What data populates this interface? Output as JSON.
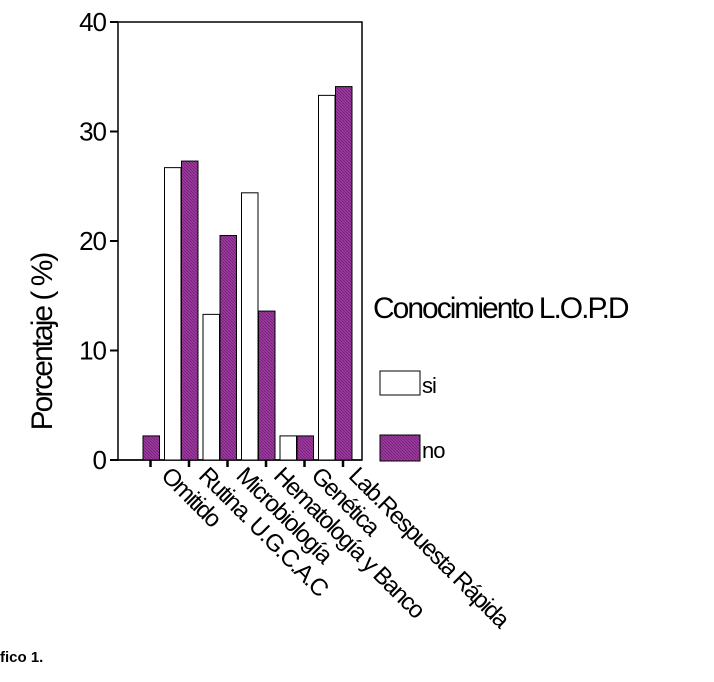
{
  "caption": "fico 1.",
  "chart_data": {
    "type": "bar",
    "title": "",
    "xlabel": "",
    "ylabel": "Porcentaje ( %)",
    "ylim": [
      0,
      40
    ],
    "yticks": [
      0,
      10,
      20,
      30,
      40
    ],
    "grid": false,
    "legend_position": "right",
    "legend_title": "Conocimiento L.O.P.D",
    "categories": [
      "Omitido",
      "Rutina. U.G.C.A.C",
      "Microbiología",
      "Hematología y Banco",
      "Genética",
      "Lab.Respuesta Rápida"
    ],
    "series": [
      {
        "name": "si",
        "values": [
          0,
          26.7,
          13.3,
          24.4,
          2.2,
          33.3
        ],
        "color": "#ffffff"
      },
      {
        "name": "no",
        "values": [
          2.2,
          27.3,
          20.5,
          13.6,
          2.2,
          34.1
        ],
        "color": "#9e3ba0"
      }
    ]
  }
}
